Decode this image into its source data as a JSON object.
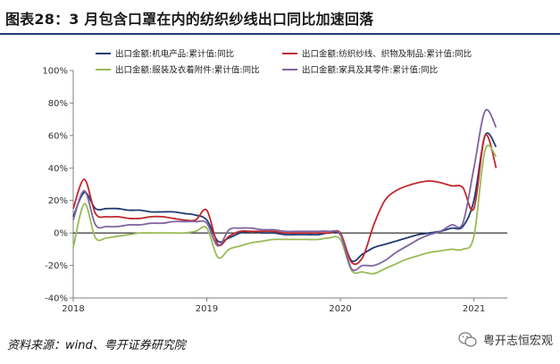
{
  "title": "图表28：3 月包含口罩在内的纺织纱线出口同比加速回落",
  "source": "资料来源：wind、粤开证券研究院",
  "watermark": "粤开志恒宏观",
  "colors": {
    "title_rule": "#1f3b73"
  },
  "chart_data": {
    "type": "line",
    "ylim": [
      -40,
      100
    ],
    "yticks": [
      -40,
      -20,
      0,
      20,
      40,
      60,
      80,
      100
    ],
    "ytick_labels": [
      "-40%",
      "-20%",
      "0%",
      "20%",
      "40%",
      "60%",
      "80%",
      "100%"
    ],
    "xlim": [
      "2018-01",
      "2021-04"
    ],
    "xticks": [
      "2018-01",
      "2019-01",
      "2020-01",
      "2021-01"
    ],
    "xtick_labels": [
      "2018",
      "2019",
      "2020",
      "2021"
    ],
    "grid": false,
    "legend_position": "top",
    "series": [
      {
        "name": "出口金额:机电产品:累计值:同比",
        "color": "#1f3b73",
        "points": [
          [
            "2018-01",
            10
          ],
          [
            "2018-02",
            25
          ],
          [
            "2018-03",
            15
          ],
          [
            "2018-04",
            15
          ],
          [
            "2018-05",
            15
          ],
          [
            "2018-06",
            14
          ],
          [
            "2018-07",
            14
          ],
          [
            "2018-08",
            13
          ],
          [
            "2018-09",
            13
          ],
          [
            "2018-10",
            13
          ],
          [
            "2018-11",
            12
          ],
          [
            "2018-12",
            11
          ],
          [
            "2019-01",
            8
          ],
          [
            "2019-02",
            -5
          ],
          [
            "2019-03",
            -3
          ],
          [
            "2019-04",
            0
          ],
          [
            "2019-05",
            1
          ],
          [
            "2019-06",
            0
          ],
          [
            "2019-07",
            0
          ],
          [
            "2019-08",
            -1
          ],
          [
            "2019-09",
            -1
          ],
          [
            "2019-10",
            -1
          ],
          [
            "2019-11",
            -1
          ],
          [
            "2019-12",
            0
          ],
          [
            "2020-01",
            -1
          ],
          [
            "2020-02",
            -17
          ],
          [
            "2020-03",
            -13
          ],
          [
            "2020-04",
            -9
          ],
          [
            "2020-05",
            -7
          ],
          [
            "2020-06",
            -5
          ],
          [
            "2020-07",
            -3
          ],
          [
            "2020-08",
            -1
          ],
          [
            "2020-09",
            0
          ],
          [
            "2020-10",
            1
          ],
          [
            "2020-11",
            3
          ],
          [
            "2020-12",
            4
          ],
          [
            "2021-01",
            20
          ],
          [
            "2021-02",
            60
          ],
          [
            "2021-03",
            53
          ]
        ]
      },
      {
        "name": "出口金额:纺织纱线、织物及制品:累计值:同比",
        "color": "#c0282e",
        "points": [
          [
            "2018-01",
            15
          ],
          [
            "2018-02",
            33
          ],
          [
            "2018-03",
            12
          ],
          [
            "2018-04",
            10
          ],
          [
            "2018-05",
            10
          ],
          [
            "2018-06",
            9
          ],
          [
            "2018-07",
            9
          ],
          [
            "2018-08",
            10
          ],
          [
            "2018-09",
            10
          ],
          [
            "2018-10",
            9
          ],
          [
            "2018-11",
            8
          ],
          [
            "2018-12",
            8
          ],
          [
            "2019-01",
            14
          ],
          [
            "2019-02",
            -7
          ],
          [
            "2019-03",
            -2
          ],
          [
            "2019-04",
            1
          ],
          [
            "2019-05",
            1
          ],
          [
            "2019-06",
            1
          ],
          [
            "2019-07",
            1
          ],
          [
            "2019-08",
            0
          ],
          [
            "2019-09",
            0
          ],
          [
            "2019-10",
            0
          ],
          [
            "2019-11",
            0
          ],
          [
            "2019-12",
            0
          ],
          [
            "2020-01",
            0
          ],
          [
            "2020-02",
            -18
          ],
          [
            "2020-03",
            -15
          ],
          [
            "2020-04",
            5
          ],
          [
            "2020-05",
            20
          ],
          [
            "2020-06",
            26
          ],
          [
            "2020-07",
            29
          ],
          [
            "2020-08",
            31
          ],
          [
            "2020-09",
            32
          ],
          [
            "2020-10",
            31
          ],
          [
            "2020-11",
            29
          ],
          [
            "2020-12",
            28
          ],
          [
            "2021-01",
            15
          ],
          [
            "2021-02",
            60
          ],
          [
            "2021-03",
            40
          ]
        ]
      },
      {
        "name": "出口金额:服装及衣着附件:累计值:同比",
        "color": "#9bbb59",
        "points": [
          [
            "2018-01",
            -9
          ],
          [
            "2018-02",
            18
          ],
          [
            "2018-03",
            -3
          ],
          [
            "2018-04",
            -3
          ],
          [
            "2018-05",
            -2
          ],
          [
            "2018-06",
            -1
          ],
          [
            "2018-07",
            0
          ],
          [
            "2018-08",
            0
          ],
          [
            "2018-09",
            0
          ],
          [
            "2018-10",
            0
          ],
          [
            "2018-11",
            0
          ],
          [
            "2018-12",
            1
          ],
          [
            "2019-01",
            3
          ],
          [
            "2019-02",
            -15
          ],
          [
            "2019-03",
            -10
          ],
          [
            "2019-04",
            -8
          ],
          [
            "2019-05",
            -6
          ],
          [
            "2019-06",
            -5
          ],
          [
            "2019-07",
            -4
          ],
          [
            "2019-08",
            -4
          ],
          [
            "2019-09",
            -4
          ],
          [
            "2019-10",
            -4
          ],
          [
            "2019-11",
            -4
          ],
          [
            "2019-12",
            -3
          ],
          [
            "2020-01",
            -4
          ],
          [
            "2020-02",
            -23
          ],
          [
            "2020-03",
            -24
          ],
          [
            "2020-04",
            -25
          ],
          [
            "2020-05",
            -22
          ],
          [
            "2020-06",
            -19
          ],
          [
            "2020-07",
            -16
          ],
          [
            "2020-08",
            -14
          ],
          [
            "2020-09",
            -12
          ],
          [
            "2020-10",
            -11
          ],
          [
            "2020-11",
            -10
          ],
          [
            "2020-12",
            -10
          ],
          [
            "2021-01",
            -2
          ],
          [
            "2021-02",
            51
          ],
          [
            "2021-03",
            47
          ]
        ]
      },
      {
        "name": "出口金额:家具及其零件:累计值:同比",
        "color": "#8064a2",
        "points": [
          [
            "2018-01",
            8
          ],
          [
            "2018-02",
            26
          ],
          [
            "2018-03",
            5
          ],
          [
            "2018-04",
            4
          ],
          [
            "2018-05",
            4
          ],
          [
            "2018-06",
            5
          ],
          [
            "2018-07",
            5
          ],
          [
            "2018-08",
            6
          ],
          [
            "2018-09",
            6
          ],
          [
            "2018-10",
            7
          ],
          [
            "2018-11",
            7
          ],
          [
            "2018-12",
            7
          ],
          [
            "2019-01",
            6
          ],
          [
            "2019-02",
            -8
          ],
          [
            "2019-03",
            2
          ],
          [
            "2019-04",
            3
          ],
          [
            "2019-05",
            3
          ],
          [
            "2019-06",
            2
          ],
          [
            "2019-07",
            2
          ],
          [
            "2019-08",
            1
          ],
          [
            "2019-09",
            1
          ],
          [
            "2019-10",
            1
          ],
          [
            "2019-11",
            1
          ],
          [
            "2019-12",
            1
          ],
          [
            "2020-01",
            -1
          ],
          [
            "2020-02",
            -22
          ],
          [
            "2020-03",
            -20
          ],
          [
            "2020-04",
            -20
          ],
          [
            "2020-05",
            -17
          ],
          [
            "2020-06",
            -12
          ],
          [
            "2020-07",
            -8
          ],
          [
            "2020-08",
            -4
          ],
          [
            "2020-09",
            -1
          ],
          [
            "2020-10",
            1
          ],
          [
            "2020-11",
            5
          ],
          [
            "2020-12",
            6
          ],
          [
            "2021-01",
            40
          ],
          [
            "2021-02",
            75
          ],
          [
            "2021-03",
            65
          ]
        ]
      }
    ]
  }
}
